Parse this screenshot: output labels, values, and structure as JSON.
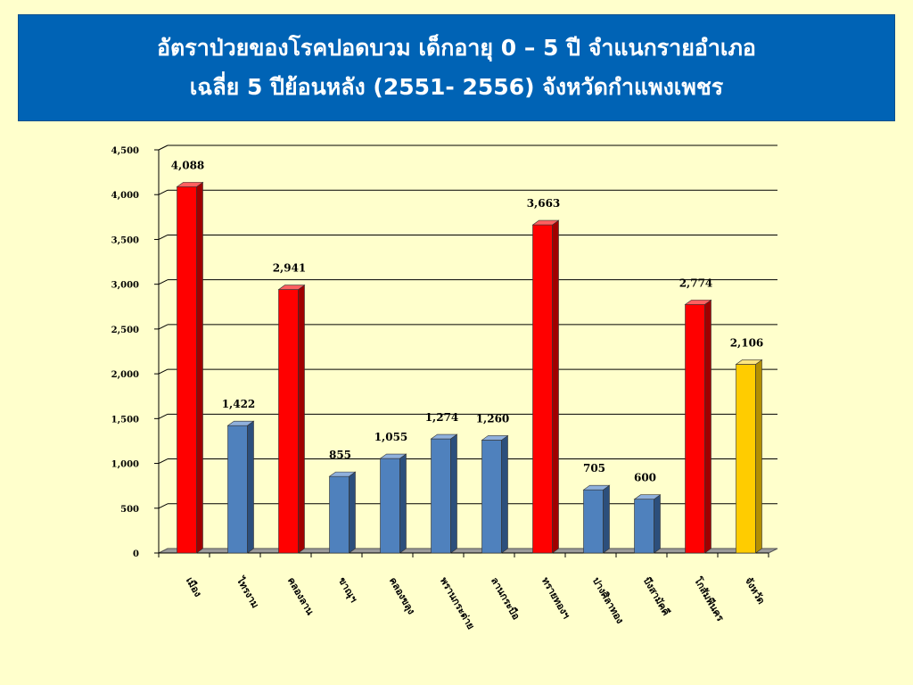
{
  "title": {
    "line1": "อัตราป่วยของโรคปอดบวม เด็กอายุ 0 – 5 ปี จำแนกรายอำเภอ",
    "line2": "เฉลี่ย 5 ปีย้อนหลัง (2551- 2556) จังหวัดกำแพงเพชร"
  },
  "colors": {
    "background": "#ffffcc",
    "banner": "#0063b5",
    "red": "#ff0000",
    "blue": "#4f81bd",
    "yellow": "#ffcc00"
  },
  "chart_data": {
    "type": "bar",
    "title": "อัตราป่วยของโรคปอดบวม เด็กอายุ 0 – 5 ปี จำแนกรายอำเภอ เฉลี่ย 5 ปีย้อนหลัง (2551- 2556) จังหวัดกำแพงเพชร",
    "xlabel": "",
    "ylabel": "",
    "ylim": [
      0,
      4500
    ],
    "yticks": [
      0,
      500,
      1000,
      1500,
      2000,
      2500,
      3000,
      3500,
      4000,
      4500
    ],
    "ytick_labels": [
      "0",
      "500",
      "1,000",
      "1,500",
      "2,000",
      "2,500",
      "3,000",
      "3,500",
      "4,000",
      "4,500"
    ],
    "grid": true,
    "categories": [
      "เมือง",
      "ไทรงาม",
      "คลองลาน",
      "ขาณุฯ",
      "คลองขลุง",
      "พรานกระต่าย",
      "ลานกระบือ",
      "ทรายทองฯ",
      "ปางศิลาทอง",
      "บึงสามัคคี",
      "โกสัมพีนคร",
      "จังหวัด"
    ],
    "values": [
      4088,
      1422,
      2941,
      855,
      1055,
      1274,
      1260,
      3663,
      705,
      600,
      2774,
      2106
    ],
    "value_labels": [
      "4,088",
      "1,422",
      "2,941",
      "855",
      "1,055",
      "1,274",
      "1,260",
      "3,663",
      "705",
      "600",
      "2,774",
      "2,106"
    ],
    "bar_colors": [
      "red",
      "blue",
      "red",
      "blue",
      "blue",
      "blue",
      "blue",
      "red",
      "blue",
      "blue",
      "red",
      "yellow"
    ]
  }
}
